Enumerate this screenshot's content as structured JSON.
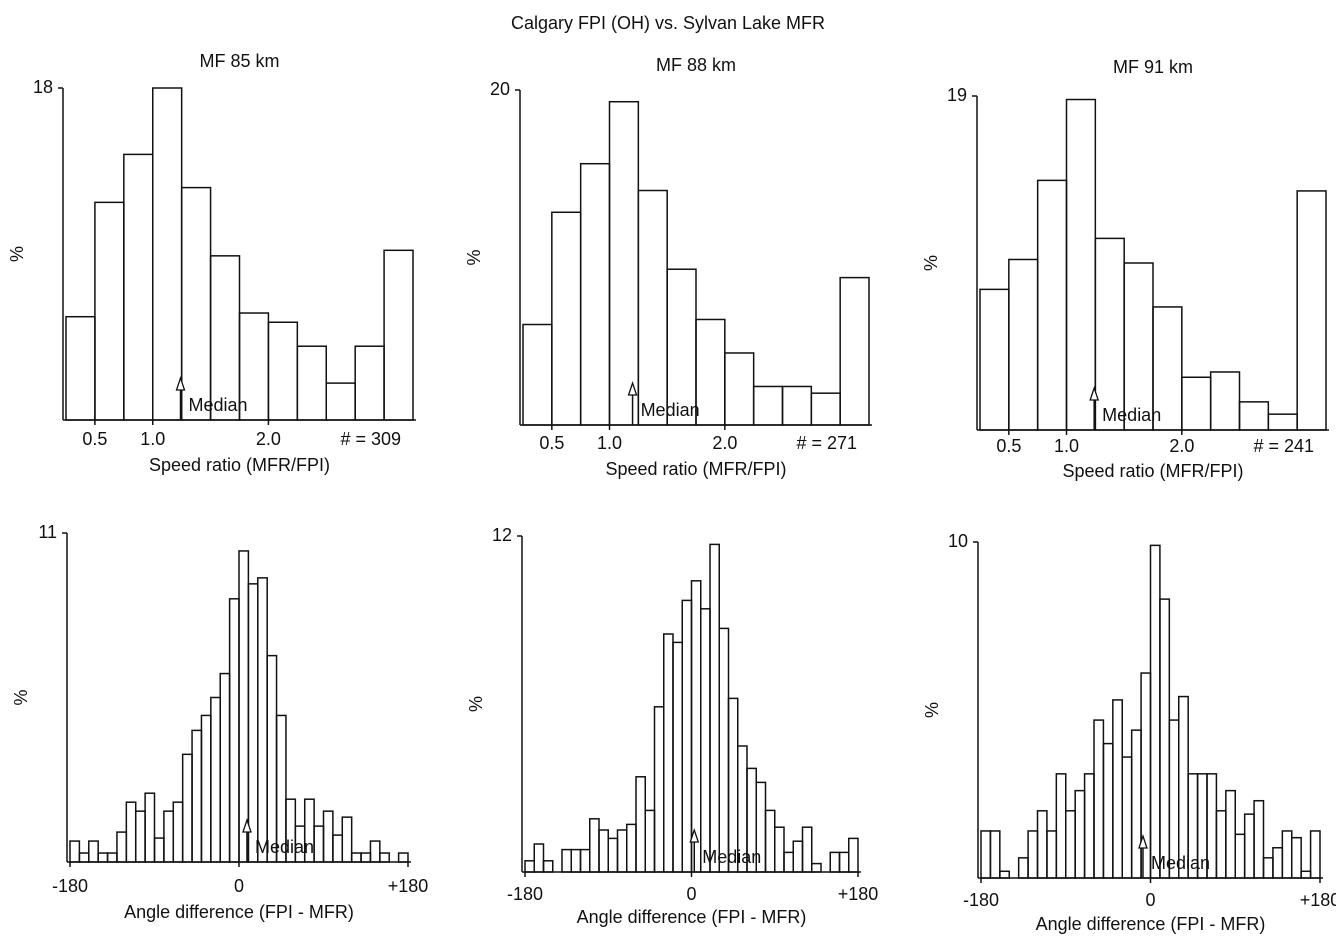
{
  "title": "Calgary FPI (OH) vs. Sylvan Lake MFR",
  "chart_data": [
    {
      "type": "histogram",
      "title": "MF 85 km",
      "ylabel": "%",
      "xlabel": "Speed ratio (MFR/FPI)",
      "count_label": "# = 309",
      "bins": [
        0.25,
        0.5,
        0.75,
        1.0,
        1.25,
        1.5,
        1.75,
        2.0,
        2.25,
        2.5,
        2.75,
        3.0,
        3.25
      ],
      "values": [
        5.6,
        11.8,
        14.4,
        18,
        12.6,
        8.9,
        5.8,
        5.3,
        4.0,
        2.0,
        4.0,
        9.2
      ],
      "xlim": [
        0.25,
        3.25
      ],
      "xticks": [
        0.5,
        {
          "value": 1,
          "label": "1.0"
        },
        {
          "value": 2,
          "label": "2.0"
        }
      ],
      "ylim": [
        0,
        18
      ],
      "yticks": [
        18
      ],
      "median": {
        "value": 1.24,
        "label": "Median"
      },
      "color": "#111111"
    },
    {
      "type": "histogram",
      "title": "MF 88 km",
      "ylabel": "%",
      "xlabel": "Speed ratio (MFR/FPI)",
      "count_label": "# = 271",
      "bins": [
        0.25,
        0.5,
        0.75,
        1.0,
        1.25,
        1.5,
        1.75,
        2.0,
        2.25,
        2.5,
        2.75,
        3.0,
        3.25
      ],
      "values": [
        6.0,
        12.7,
        15.6,
        19.3,
        14.0,
        9.3,
        6.3,
        4.3,
        2.3,
        2.3,
        1.9,
        8.8
      ],
      "xlim": [
        0.25,
        3.25
      ],
      "xticks": [
        0.5,
        {
          "value": 1,
          "label": "1.0"
        },
        {
          "value": 2,
          "label": "2.0"
        }
      ],
      "ylim": [
        0,
        20
      ],
      "yticks": [
        20
      ],
      "median": {
        "value": 1.2,
        "label": "Median"
      },
      "color": "#111111"
    },
    {
      "type": "histogram",
      "title": "MF 91 km",
      "ylabel": "%",
      "xlabel": "Speed ratio (MFR/FPI)",
      "count_label": "# = 241",
      "bins": [
        0.25,
        0.5,
        0.75,
        1.0,
        1.25,
        1.5,
        1.75,
        2.0,
        2.25,
        2.5,
        2.75,
        3.0,
        3.25
      ],
      "values": [
        8.0,
        9.7,
        14.2,
        18.8,
        10.9,
        9.5,
        7.0,
        3.0,
        3.3,
        1.6,
        0.9,
        13.6
      ],
      "xlim": [
        0.25,
        3.25
      ],
      "xticks": [
        0.5,
        {
          "value": 1,
          "label": "1.0"
        },
        {
          "value": 2,
          "label": "2.0"
        }
      ],
      "ylim": [
        0,
        19
      ],
      "yticks": [
        19
      ],
      "median": {
        "value": 1.24,
        "label": "Median"
      },
      "color": "#111111"
    },
    {
      "type": "histogram",
      "ylabel": "%",
      "xlabel": "Angle difference (FPI - MFR)",
      "bins": [
        -180,
        -170,
        -160,
        -150,
        -140,
        -130,
        -120,
        -110,
        -100,
        -90,
        -80,
        -70,
        -60,
        -50,
        -40,
        -30,
        -20,
        -10,
        0,
        10,
        20,
        30,
        40,
        50,
        60,
        70,
        80,
        90,
        100,
        110,
        120,
        130,
        140,
        150,
        160,
        170,
        180
      ],
      "values": [
        0.7,
        0.3,
        0.7,
        0.3,
        0.3,
        1.0,
        2.0,
        1.7,
        2.3,
        0.8,
        1.7,
        2.0,
        3.6,
        4.4,
        4.9,
        5.5,
        6.3,
        8.8,
        10.4,
        9.3,
        9.5,
        6.9,
        4.9,
        2.1,
        1.2,
        2.1,
        1.2,
        1.7,
        0.9,
        1.5,
        0.3,
        0.3,
        0.7,
        0.3,
        0,
        0.3
      ],
      "xlim": [
        -180,
        180
      ],
      "xticks": [
        -180,
        0,
        {
          "value": 180,
          "label": "+180"
        }
      ],
      "ylim": [
        0,
        11
      ],
      "yticks": [
        11
      ],
      "median": {
        "value": 8.5,
        "label": "Median"
      },
      "color": "#111111"
    },
    {
      "type": "histogram",
      "ylabel": "%",
      "xlabel": "Angle difference (FPI - MFR)",
      "bins": [
        -180,
        -170,
        -160,
        -150,
        -140,
        -130,
        -120,
        -110,
        -100,
        -90,
        -80,
        -70,
        -60,
        -50,
        -40,
        -30,
        -20,
        -10,
        0,
        10,
        20,
        30,
        40,
        50,
        60,
        70,
        80,
        90,
        100,
        110,
        120,
        130,
        140,
        150,
        160,
        170,
        180
      ],
      "values": [
        0.4,
        1.0,
        0.4,
        0,
        0.8,
        0.8,
        0.8,
        1.9,
        1.5,
        1.2,
        1.5,
        1.7,
        3.4,
        2.2,
        5.9,
        8.5,
        8.2,
        9.7,
        10.4,
        9.4,
        11.7,
        8.7,
        6.2,
        4.5,
        3.7,
        3.2,
        2.2,
        1.6,
        0.7,
        1.1,
        1.6,
        0.3,
        0,
        0.7,
        0.7,
        1.2
      ],
      "xlim": [
        -180,
        180
      ],
      "xticks": [
        -180,
        0,
        {
          "value": 180,
          "label": "+180"
        }
      ],
      "ylim": [
        0,
        12
      ],
      "yticks": [
        12
      ],
      "median": {
        "value": 3,
        "label": "Median"
      },
      "color": "#111111"
    },
    {
      "type": "histogram",
      "ylabel": "%",
      "xlabel": "Angle difference (FPI - MFR)",
      "bins": [
        -180,
        -170,
        -160,
        -150,
        -140,
        -130,
        -120,
        -110,
        -100,
        -90,
        -80,
        -70,
        -60,
        -50,
        -40,
        -30,
        -20,
        -10,
        0,
        10,
        20,
        30,
        40,
        50,
        60,
        70,
        80,
        90,
        100,
        110,
        120,
        130,
        140,
        150,
        160,
        170,
        180
      ],
      "values": [
        1.4,
        1.4,
        0.2,
        0,
        0.6,
        1.4,
        2.0,
        1.4,
        3.1,
        2.0,
        2.6,
        3.1,
        4.7,
        4.0,
        5.3,
        3.6,
        4.4,
        6.1,
        9.9,
        8.3,
        4.7,
        5.4,
        3.1,
        3.1,
        3.1,
        2.0,
        2.6,
        1.3,
        1.9,
        2.3,
        0.6,
        0.9,
        1.4,
        1.2,
        0.2,
        1.4
      ],
      "xlim": [
        -180,
        180
      ],
      "xticks": [
        -180,
        0,
        {
          "value": 180,
          "label": "+180"
        }
      ],
      "ylim": [
        0,
        10
      ],
      "yticks": [
        10
      ],
      "median": {
        "value": -8,
        "label": "Median"
      },
      "color": "#111111"
    }
  ]
}
